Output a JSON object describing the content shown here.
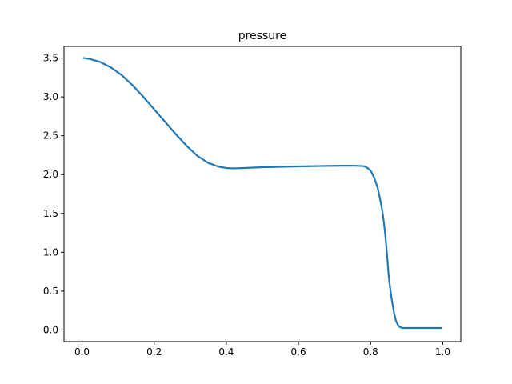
{
  "chart_data": {
    "type": "line",
    "title": "pressure",
    "xlabel": "",
    "ylabel": "",
    "xlim": [
      -0.05,
      1.05
    ],
    "ylim": [
      -0.15,
      3.65
    ],
    "xticks": [
      0.0,
      0.2,
      0.4,
      0.6,
      0.8,
      1.0
    ],
    "xtick_labels": [
      "0.0",
      "0.2",
      "0.4",
      "0.6",
      "0.8",
      "1.0"
    ],
    "yticks": [
      0.0,
      0.5,
      1.0,
      1.5,
      2.0,
      2.5,
      3.0,
      3.5
    ],
    "ytick_labels": [
      "0.0",
      "0.5",
      "1.0",
      "1.5",
      "2.0",
      "2.5",
      "3.0",
      "3.5"
    ],
    "grid": false,
    "series": [
      {
        "color": "#1f77b4",
        "x": [
          0.005,
          0.02,
          0.05,
          0.08,
          0.11,
          0.14,
          0.17,
          0.2,
          0.23,
          0.26,
          0.29,
          0.32,
          0.35,
          0.38,
          0.4,
          0.42,
          0.45,
          0.5,
          0.55,
          0.6,
          0.65,
          0.7,
          0.75,
          0.78,
          0.79,
          0.8,
          0.81,
          0.82,
          0.83,
          0.835,
          0.84,
          0.845,
          0.85,
          0.855,
          0.86,
          0.865,
          0.87,
          0.875,
          0.88,
          0.885,
          0.89,
          0.9,
          0.95,
          0.995
        ],
        "y": [
          3.5,
          3.49,
          3.45,
          3.38,
          3.28,
          3.15,
          3.0,
          2.84,
          2.68,
          2.52,
          2.37,
          2.24,
          2.15,
          2.1,
          2.085,
          2.08,
          2.085,
          2.095,
          2.1,
          2.105,
          2.11,
          2.113,
          2.115,
          2.11,
          2.09,
          2.05,
          1.96,
          1.82,
          1.6,
          1.45,
          1.25,
          1.0,
          0.7,
          0.5,
          0.35,
          0.22,
          0.12,
          0.07,
          0.04,
          0.03,
          0.025,
          0.025,
          0.025,
          0.025
        ]
      }
    ]
  }
}
